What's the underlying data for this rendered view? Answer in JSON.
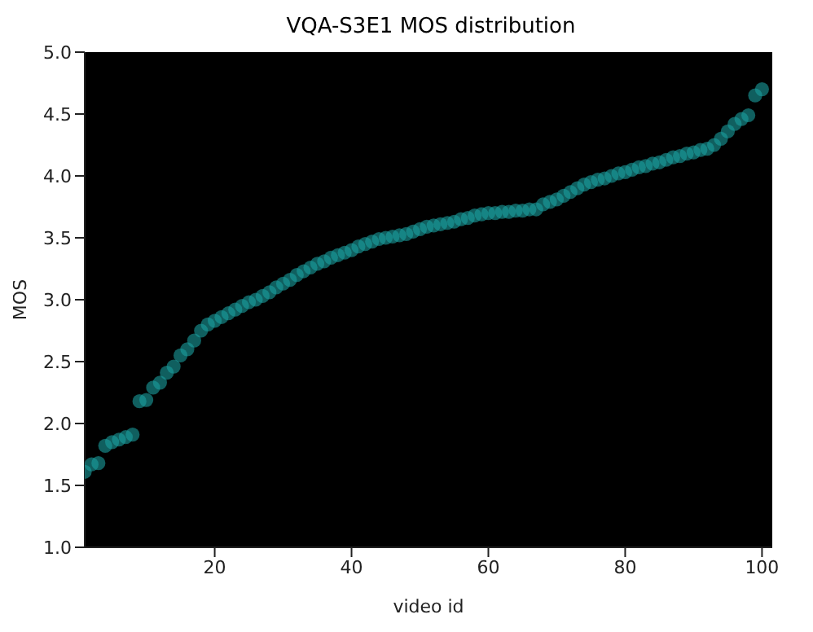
{
  "chart_data": {
    "type": "scatter",
    "title": "VQA-S3E1 MOS distribution",
    "xlabel": "video id",
    "ylabel": "MOS",
    "x": [
      1,
      2,
      3,
      4,
      5,
      6,
      7,
      8,
      9,
      10,
      11,
      12,
      13,
      14,
      15,
      16,
      17,
      18,
      19,
      20,
      21,
      22,
      23,
      24,
      25,
      26,
      27,
      28,
      29,
      30,
      31,
      32,
      33,
      34,
      35,
      36,
      37,
      38,
      39,
      40,
      41,
      42,
      43,
      44,
      45,
      46,
      47,
      48,
      49,
      50,
      51,
      52,
      53,
      54,
      55,
      56,
      57,
      58,
      59,
      60,
      61,
      62,
      63,
      64,
      65,
      66,
      67,
      68,
      69,
      70,
      71,
      72,
      73,
      74,
      75,
      76,
      77,
      78,
      79,
      80,
      81,
      82,
      83,
      84,
      85,
      86,
      87,
      88,
      89,
      90,
      91,
      92,
      93,
      94,
      95,
      96,
      97,
      98,
      99,
      100
    ],
    "series": [
      {
        "color": "#1a9e9e",
        "values": [
          1.61,
          1.67,
          1.68,
          1.82,
          1.85,
          1.87,
          1.89,
          1.91,
          2.18,
          2.19,
          2.29,
          2.33,
          2.41,
          2.46,
          2.55,
          2.6,
          2.67,
          2.75,
          2.8,
          2.83,
          2.86,
          2.89,
          2.92,
          2.95,
          2.98,
          3.0,
          3.03,
          3.06,
          3.1,
          3.13,
          3.16,
          3.2,
          3.23,
          3.26,
          3.29,
          3.31,
          3.34,
          3.36,
          3.38,
          3.4,
          3.43,
          3.45,
          3.47,
          3.49,
          3.5,
          3.51,
          3.52,
          3.53,
          3.55,
          3.57,
          3.59,
          3.6,
          3.61,
          3.62,
          3.63,
          3.65,
          3.66,
          3.68,
          3.69,
          3.7,
          3.7,
          3.71,
          3.71,
          3.72,
          3.72,
          3.73,
          3.73,
          3.77,
          3.79,
          3.81,
          3.84,
          3.87,
          3.9,
          3.93,
          3.95,
          3.97,
          3.98,
          4.0,
          4.02,
          4.03,
          4.05,
          4.07,
          4.08,
          4.1,
          4.11,
          4.13,
          4.15,
          4.16,
          4.18,
          4.19,
          4.21,
          4.22,
          4.25,
          4.3,
          4.36,
          4.42,
          4.46,
          4.49,
          4.65,
          4.7
        ]
      }
    ],
    "xlim": [
      1,
      101.5
    ],
    "xticks": [
      20,
      40,
      60,
      80,
      100
    ],
    "ylim": [
      1,
      5
    ],
    "yticks": [
      {
        "value": 1,
        "label": "1.0"
      },
      1.5,
      {
        "value": 2,
        "label": "2.0"
      },
      2.5,
      {
        "value": 3,
        "label": "3.0"
      },
      3.5,
      {
        "value": 4,
        "label": "4.0"
      },
      4.5,
      {
        "value": 5,
        "label": "5.0"
      }
    ],
    "marker": "circle",
    "grid": false,
    "legend": false
  }
}
